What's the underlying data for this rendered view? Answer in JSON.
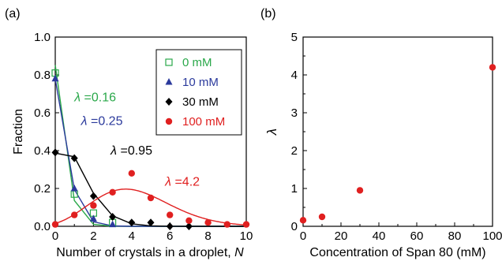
{
  "chart_data": [
    {
      "type": "scatter",
      "panel_label": "(a)",
      "xlabel": "Number of crystals in a droplet, ",
      "xlabel_italic": "N",
      "ylabel": "Fraction",
      "xlim": [
        0,
        10
      ],
      "ylim": [
        0,
        1.0
      ],
      "x_ticks": [
        0,
        2,
        4,
        6,
        8,
        10
      ],
      "y_ticks": [
        "0.0",
        "0.2",
        "0.4",
        "0.6",
        "0.8",
        "1.0"
      ],
      "grid": false,
      "legend_position": "top-right",
      "series": [
        {
          "name": "0 mM",
          "color": "#2aa84a",
          "marker": "open-square",
          "x": [
            0,
            1,
            2,
            3
          ],
          "y": [
            0.81,
            0.17,
            0.07,
            0.02
          ],
          "fit_lambda": 0.16
        },
        {
          "name": "10 mM",
          "color": "#2b3a9c",
          "marker": "triangle",
          "x": [
            0,
            1,
            2,
            3
          ],
          "y": [
            0.78,
            0.2,
            0.04,
            0.01
          ],
          "fit_lambda": 0.25
        },
        {
          "name": "30 mM",
          "color": "#000000",
          "marker": "diamond",
          "x": [
            0,
            1,
            2,
            3,
            4,
            5,
            6,
            7
          ],
          "y": [
            0.39,
            0.36,
            0.16,
            0.05,
            0.02,
            0.02,
            0.0,
            0.0
          ],
          "fit_lambda": 0.95
        },
        {
          "name": "100 mM",
          "color": "#e02020",
          "marker": "circle",
          "x": [
            0,
            1,
            2,
            3,
            4,
            5,
            6,
            7,
            8,
            9,
            10
          ],
          "y": [
            0.01,
            0.06,
            0.11,
            0.18,
            0.28,
            0.15,
            0.06,
            0.03,
            0.02,
            0.01,
            0.01
          ],
          "fit_lambda": 4.2
        }
      ],
      "annotations": [
        {
          "symbol": "λ",
          "text": " =0.16",
          "color": "#2aa84a",
          "at": [
            1.0,
            0.66
          ]
        },
        {
          "symbol": "λ",
          "text": " =0.25",
          "color": "#2b3a9c",
          "at": [
            1.35,
            0.535
          ]
        },
        {
          "symbol": "λ",
          "text": " =0.95",
          "color": "#000000",
          "at": [
            2.9,
            0.38
          ]
        },
        {
          "symbol": "λ",
          "text": " =4.2",
          "color": "#e02020",
          "at": [
            5.75,
            0.215
          ]
        }
      ]
    },
    {
      "type": "scatter",
      "panel_label": "(b)",
      "xlabel": "Concentration of Span 80 (mM)",
      "ylabel": "λ",
      "xlim": [
        0,
        100
      ],
      "ylim": [
        0,
        5
      ],
      "x_ticks": [
        0,
        20,
        40,
        60,
        80,
        100
      ],
      "y_ticks": [
        "0",
        "1",
        "2",
        "3",
        "4",
        "5"
      ],
      "grid": false,
      "series": [
        {
          "color": "#e02020",
          "marker": "circle",
          "x": [
            0,
            10,
            30,
            100
          ],
          "y": [
            0.16,
            0.25,
            0.95,
            4.2
          ]
        }
      ]
    }
  ]
}
